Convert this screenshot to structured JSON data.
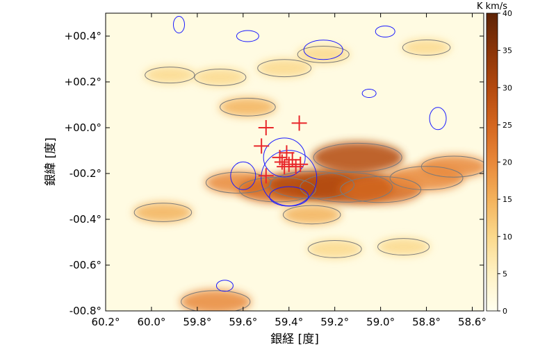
{
  "chart_data": {
    "type": "heatmap",
    "xlabel": "銀経 [度]",
    "ylabel": "銀緯 [度]",
    "xlim": [
      60.2,
      58.55
    ],
    "ylim": [
      -0.8,
      0.5
    ],
    "x_ticks": [
      {
        "value": 60.2,
        "label": "60.2°"
      },
      {
        "value": 60.0,
        "label": "60.0°"
      },
      {
        "value": 59.8,
        "label": "59.8°"
      },
      {
        "value": 59.6,
        "label": "59.6°"
      },
      {
        "value": 59.4,
        "label": "59.4°"
      },
      {
        "value": 59.2,
        "label": "59.2°"
      },
      {
        "value": 59.0,
        "label": "59.0°"
      },
      {
        "value": 58.8,
        "label": "58.8°"
      },
      {
        "value": 58.6,
        "label": "58.6°"
      }
    ],
    "y_ticks": [
      {
        "value": 0.4,
        "label": "+00.4°"
      },
      {
        "value": 0.2,
        "label": "+00.2°"
      },
      {
        "value": 0.0,
        "label": "+00.0°"
      },
      {
        "value": -0.2,
        "label": "-00.2°"
      },
      {
        "value": -0.4,
        "label": "-00.4°"
      },
      {
        "value": -0.6,
        "label": "-00.6°"
      },
      {
        "value": -0.8,
        "label": "-00.8°"
      }
    ],
    "colorbar": {
      "label": "K km/s",
      "range": [
        0,
        40
      ],
      "ticks": [
        0,
        5,
        10,
        15,
        20,
        25,
        30,
        35,
        40
      ],
      "colors": [
        "#fffff0",
        "#fff2c4",
        "#fbd98c",
        "#f3b25c",
        "#e8883a",
        "#d4661f",
        "#b3490f",
        "#8a3408",
        "#5e2306"
      ]
    },
    "emission_regions": [
      {
        "l": 59.62,
        "b": -0.24,
        "value": 18
      },
      {
        "l": 59.45,
        "b": -0.27,
        "value": 24
      },
      {
        "l": 59.3,
        "b": -0.25,
        "value": 28
      },
      {
        "l": 59.15,
        "b": -0.26,
        "value": 32
      },
      {
        "l": 59.0,
        "b": -0.27,
        "value": 26
      },
      {
        "l": 58.8,
        "b": -0.22,
        "value": 22
      },
      {
        "l": 59.1,
        "b": -0.13,
        "value": 30
      },
      {
        "l": 59.3,
        "b": -0.38,
        "value": 14
      },
      {
        "l": 58.68,
        "b": -0.17,
        "value": 18
      },
      {
        "l": 59.95,
        "b": -0.37,
        "value": 14
      },
      {
        "l": 59.42,
        "b": 0.26,
        "value": 12
      },
      {
        "l": 59.7,
        "b": 0.22,
        "value": 11
      },
      {
        "l": 59.92,
        "b": 0.23,
        "value": 10
      },
      {
        "l": 59.25,
        "b": 0.32,
        "value": 11
      },
      {
        "l": 58.8,
        "b": 0.35,
        "value": 9
      },
      {
        "l": 59.2,
        "b": -0.53,
        "value": 12
      },
      {
        "l": 59.72,
        "b": -0.76,
        "value": 20
      },
      {
        "l": 59.58,
        "b": 0.09,
        "value": 13
      },
      {
        "l": 58.9,
        "b": -0.52,
        "value": 11
      }
    ],
    "crosses": [
      {
        "l": 59.5,
        "b": 0.0
      },
      {
        "l": 59.355,
        "b": 0.02
      },
      {
        "l": 59.52,
        "b": -0.08
      },
      {
        "l": 59.41,
        "b": -0.11
      },
      {
        "l": 59.43,
        "b": -0.15
      },
      {
        "l": 59.4,
        "b": -0.16
      },
      {
        "l": 59.37,
        "b": -0.17
      },
      {
        "l": 59.35,
        "b": -0.16
      },
      {
        "l": 59.42,
        "b": -0.17
      },
      {
        "l": 59.385,
        "b": -0.14
      },
      {
        "l": 59.5,
        "b": -0.21
      },
      {
        "l": 59.44,
        "b": -0.13
      }
    ]
  }
}
